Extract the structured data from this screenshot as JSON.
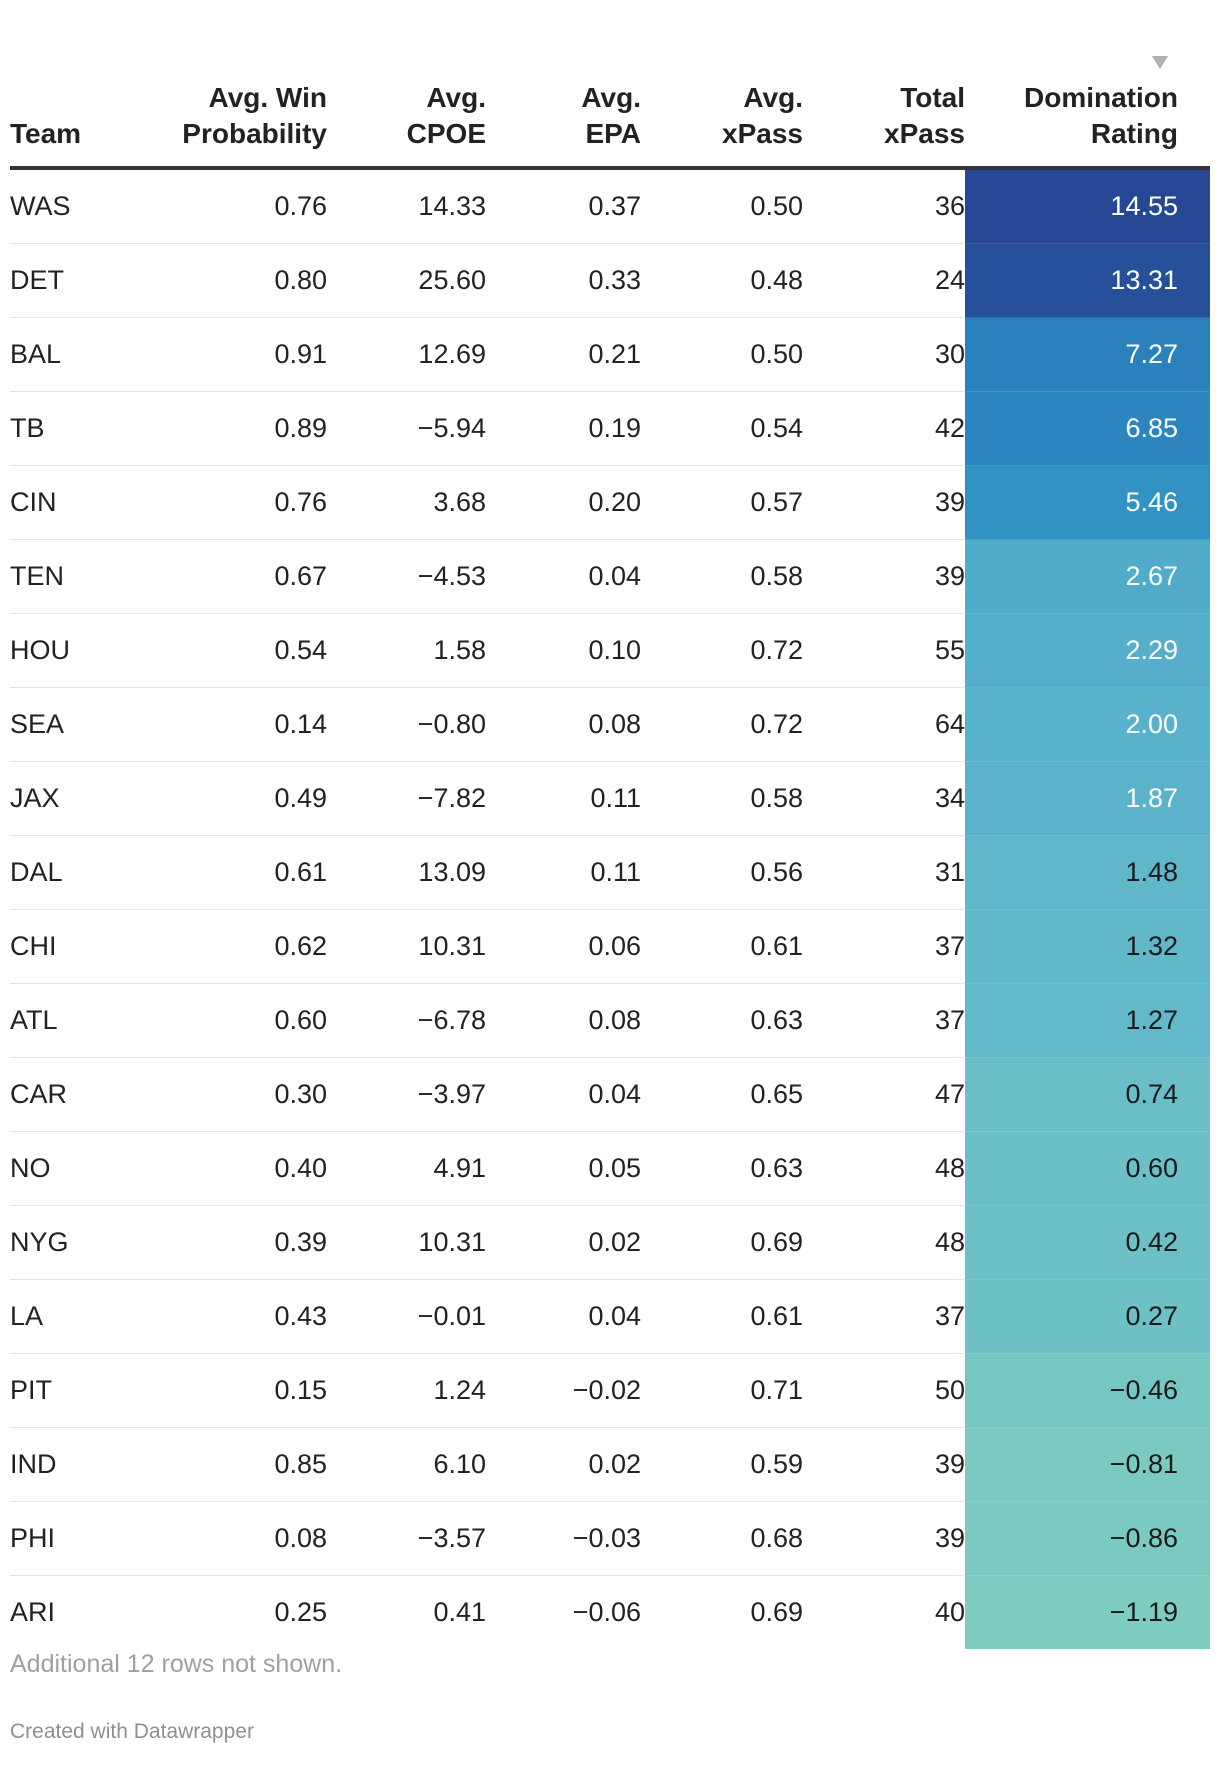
{
  "chart_data": {
    "type": "table",
    "columns": [
      {
        "key": "team",
        "label_lines": [
          "Team"
        ]
      },
      {
        "key": "win_prob",
        "label_lines": [
          "Avg. Win",
          "Probability"
        ]
      },
      {
        "key": "cpoe",
        "label_lines": [
          "Avg.",
          "CPOE"
        ]
      },
      {
        "key": "epa",
        "label_lines": [
          "Avg.",
          "EPA"
        ]
      },
      {
        "key": "xpass",
        "label_lines": [
          "Avg.",
          "xPass"
        ]
      },
      {
        "key": "total_xpass",
        "label_lines": [
          "Total",
          "xPass"
        ]
      },
      {
        "key": "domination",
        "label_lines": [
          "Domination",
          "Rating"
        ]
      }
    ],
    "sorted_by": "domination",
    "sort_order": "descending",
    "rows": [
      {
        "team": "WAS",
        "win_prob": "0.76",
        "cpoe": "14.33",
        "epa": "0.37",
        "xpass": "0.50",
        "total_xpass": "36",
        "domination": "14.55"
      },
      {
        "team": "DET",
        "win_prob": "0.80",
        "cpoe": "25.60",
        "epa": "0.33",
        "xpass": "0.48",
        "total_xpass": "24",
        "domination": "13.31"
      },
      {
        "team": "BAL",
        "win_prob": "0.91",
        "cpoe": "12.69",
        "epa": "0.21",
        "xpass": "0.50",
        "total_xpass": "30",
        "domination": "7.27"
      },
      {
        "team": "TB",
        "win_prob": "0.89",
        "cpoe": "−5.94",
        "epa": "0.19",
        "xpass": "0.54",
        "total_xpass": "42",
        "domination": "6.85"
      },
      {
        "team": "CIN",
        "win_prob": "0.76",
        "cpoe": "3.68",
        "epa": "0.20",
        "xpass": "0.57",
        "total_xpass": "39",
        "domination": "5.46"
      },
      {
        "team": "TEN",
        "win_prob": "0.67",
        "cpoe": "−4.53",
        "epa": "0.04",
        "xpass": "0.58",
        "total_xpass": "39",
        "domination": "2.67"
      },
      {
        "team": "HOU",
        "win_prob": "0.54",
        "cpoe": "1.58",
        "epa": "0.10",
        "xpass": "0.72",
        "total_xpass": "55",
        "domination": "2.29"
      },
      {
        "team": "SEA",
        "win_prob": "0.14",
        "cpoe": "−0.80",
        "epa": "0.08",
        "xpass": "0.72",
        "total_xpass": "64",
        "domination": "2.00"
      },
      {
        "team": "JAX",
        "win_prob": "0.49",
        "cpoe": "−7.82",
        "epa": "0.11",
        "xpass": "0.58",
        "total_xpass": "34",
        "domination": "1.87"
      },
      {
        "team": "DAL",
        "win_prob": "0.61",
        "cpoe": "13.09",
        "epa": "0.11",
        "xpass": "0.56",
        "total_xpass": "31",
        "domination": "1.48"
      },
      {
        "team": "CHI",
        "win_prob": "0.62",
        "cpoe": "10.31",
        "epa": "0.06",
        "xpass": "0.61",
        "total_xpass": "37",
        "domination": "1.32"
      },
      {
        "team": "ATL",
        "win_prob": "0.60",
        "cpoe": "−6.78",
        "epa": "0.08",
        "xpass": "0.63",
        "total_xpass": "37",
        "domination": "1.27"
      },
      {
        "team": "CAR",
        "win_prob": "0.30",
        "cpoe": "−3.97",
        "epa": "0.04",
        "xpass": "0.65",
        "total_xpass": "47",
        "domination": "0.74"
      },
      {
        "team": "NO",
        "win_prob": "0.40",
        "cpoe": "4.91",
        "epa": "0.05",
        "xpass": "0.63",
        "total_xpass": "48",
        "domination": "0.60"
      },
      {
        "team": "NYG",
        "win_prob": "0.39",
        "cpoe": "10.31",
        "epa": "0.02",
        "xpass": "0.69",
        "total_xpass": "48",
        "domination": "0.42"
      },
      {
        "team": "LA",
        "win_prob": "0.43",
        "cpoe": "−0.01",
        "epa": "0.04",
        "xpass": "0.61",
        "total_xpass": "37",
        "domination": "0.27"
      },
      {
        "team": "PIT",
        "win_prob": "0.15",
        "cpoe": "1.24",
        "epa": "−0.02",
        "xpass": "0.71",
        "total_xpass": "50",
        "domination": "−0.46"
      },
      {
        "team": "IND",
        "win_prob": "0.85",
        "cpoe": "6.10",
        "epa": "0.02",
        "xpass": "0.59",
        "total_xpass": "39",
        "domination": "−0.81"
      },
      {
        "team": "PHI",
        "win_prob": "0.08",
        "cpoe": "−3.57",
        "epa": "−0.03",
        "xpass": "0.68",
        "total_xpass": "39",
        "domination": "−0.86"
      },
      {
        "team": "ARI",
        "win_prob": "0.25",
        "cpoe": "0.41",
        "epa": "−0.06",
        "xpass": "0.69",
        "total_xpass": "40",
        "domination": "−1.19"
      }
    ],
    "heatmap": {
      "column": "domination",
      "color_stops": [
        {
          "value": -1.19,
          "color": "#7ecdc1"
        },
        {
          "value": 0.5,
          "color": "#6cc0c6"
        },
        {
          "value": 2.0,
          "color": "#58b2cb"
        },
        {
          "value": 6.0,
          "color": "#2d8dc3"
        },
        {
          "value": 8.0,
          "color": "#2a7ab8"
        },
        {
          "value": 13.31,
          "color": "#27509a"
        },
        {
          "value": 14.55,
          "color": "#264794"
        }
      ],
      "light_text_threshold": 1.5
    }
  },
  "footer": {
    "note": "Additional 12 rows not shown.",
    "credit": "Created with Datawrapper"
  },
  "icons": {
    "sort": "sort-descending-triangle-icon"
  }
}
